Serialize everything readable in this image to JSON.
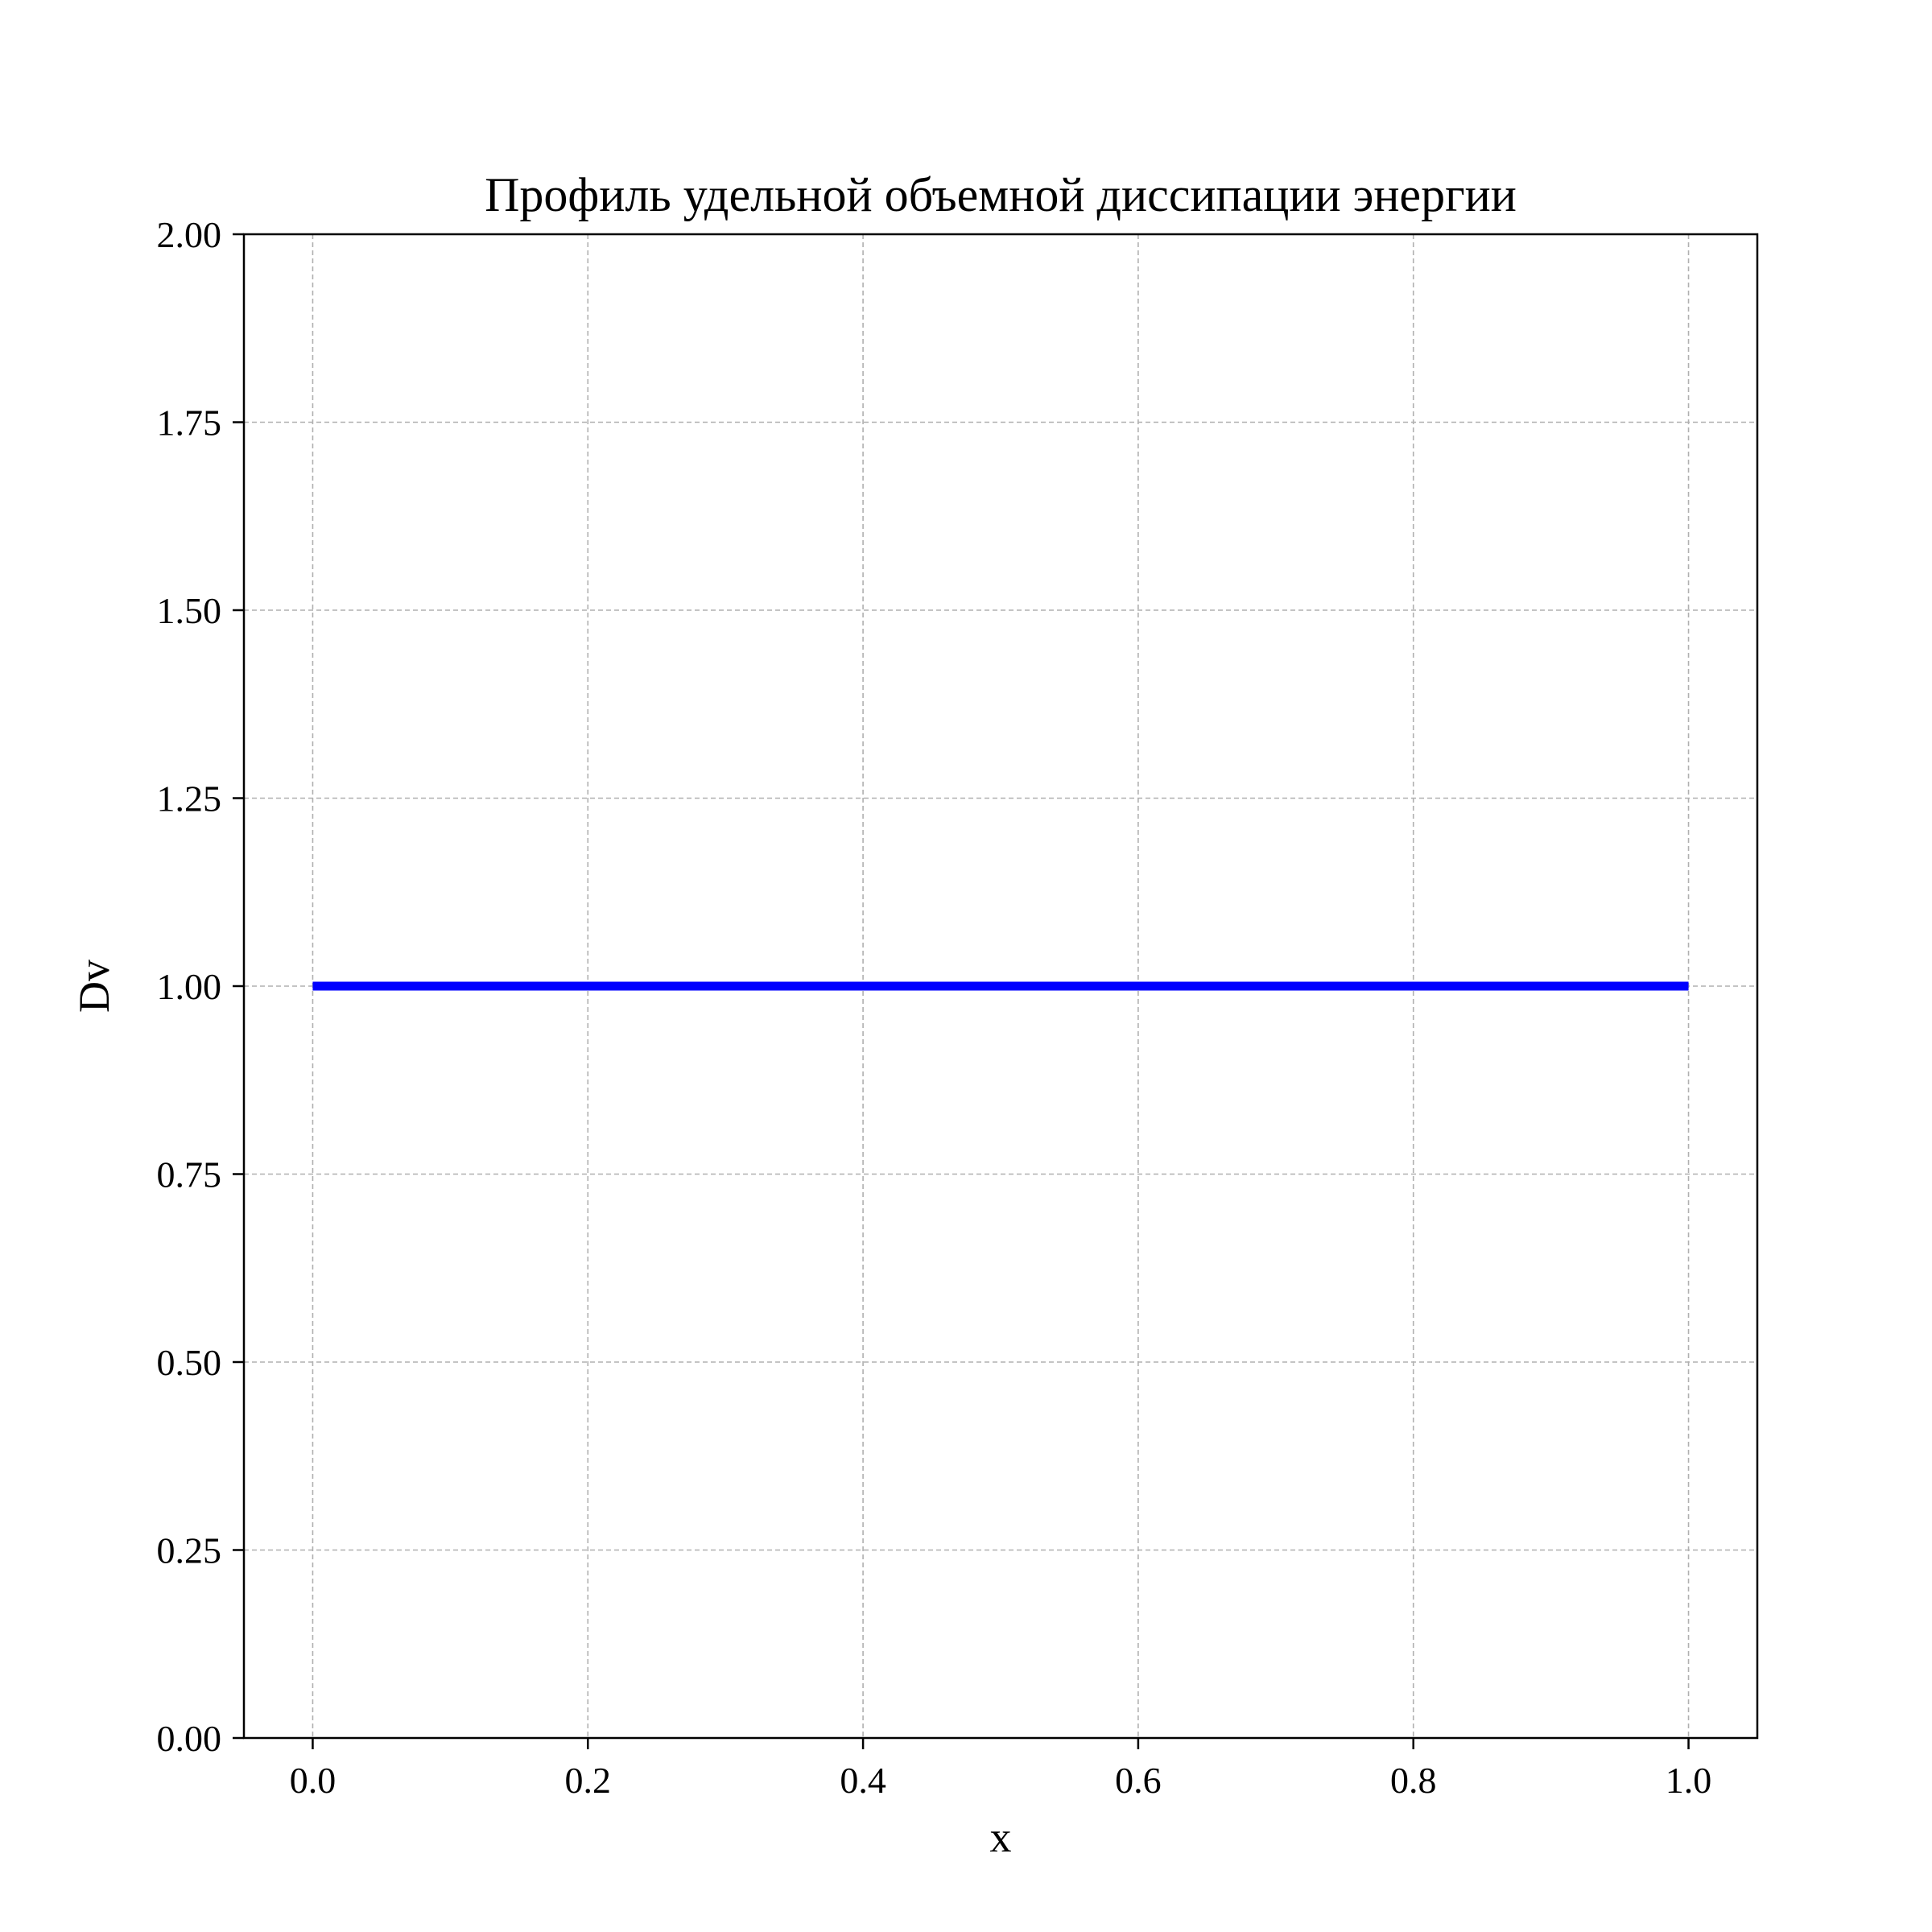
{
  "chart_data": {
    "type": "line",
    "title": "Профиль удельной объемной диссипации энергии",
    "xlabel": "x",
    "ylabel": "Dv",
    "xlim": [
      -0.05,
      1.05
    ],
    "ylim": [
      0.0,
      2.0
    ],
    "xticks": [
      0.0,
      0.2,
      0.4,
      0.6,
      0.8,
      1.0
    ],
    "xtick_labels": [
      "0.0",
      "0.2",
      "0.4",
      "0.6",
      "0.8",
      "1.0"
    ],
    "yticks": [
      0.0,
      0.25,
      0.5,
      0.75,
      1.0,
      1.25,
      1.5,
      1.75,
      2.0
    ],
    "ytick_labels": [
      "0.00",
      "0.25",
      "0.50",
      "0.75",
      "1.00",
      "1.25",
      "1.50",
      "1.75",
      "2.00"
    ],
    "grid": true,
    "legend": "none",
    "series": [
      {
        "color": "#0000ff",
        "x": [
          0.0,
          0.1,
          0.2,
          0.3,
          0.4,
          0.5,
          0.6,
          0.7,
          0.8,
          0.9,
          1.0
        ],
        "y": [
          1.0,
          1.0,
          1.0,
          1.0,
          1.0,
          1.0,
          1.0,
          1.0,
          1.0,
          1.0,
          1.0
        ]
      }
    ]
  }
}
